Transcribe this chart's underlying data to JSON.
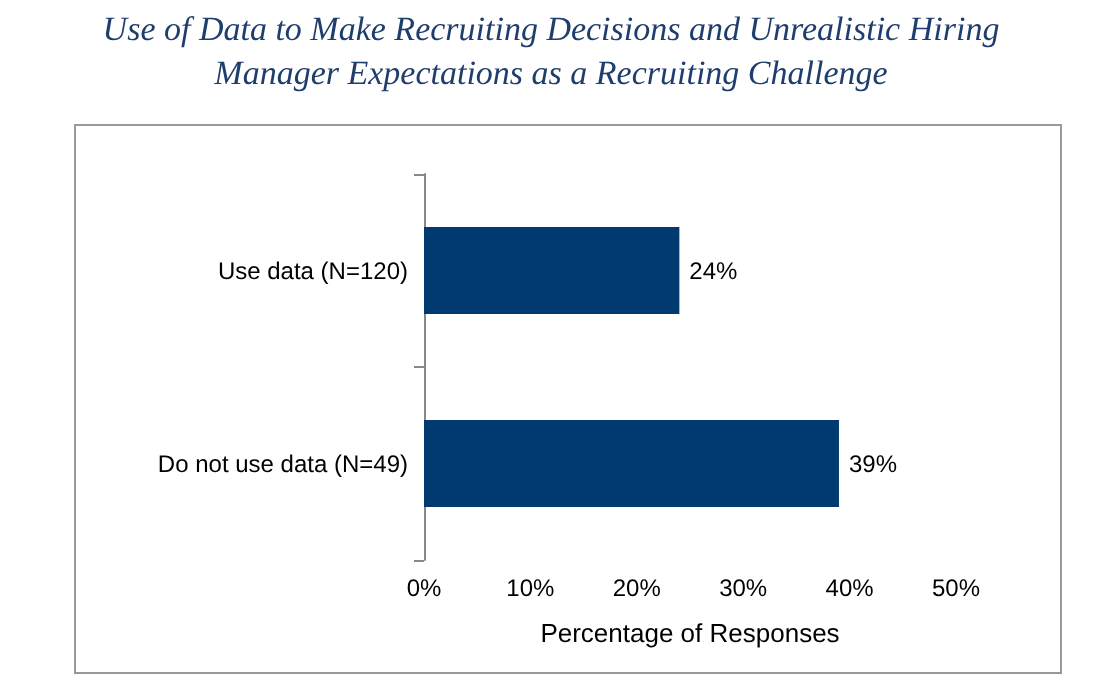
{
  "chart_data": {
    "type": "bar",
    "orientation": "horizontal",
    "title": "Use of Data to Make Recruiting Decisions and Unrealistic Hiring Manager Expectations as a Recruiting Challenge",
    "categories": [
      "Use data (N=120)",
      "Do not use data (N=49)"
    ],
    "values": [
      24,
      39
    ],
    "value_labels": [
      "24%",
      "39%"
    ],
    "color": "#003a70",
    "xlabel": "Percentage of Responses",
    "xlim": [
      0,
      50
    ],
    "xticks": [
      {
        "value": 0,
        "label": "0%"
      },
      {
        "value": 10,
        "label": "10%"
      },
      {
        "value": 20,
        "label": "20%"
      },
      {
        "value": 30,
        "label": "30%"
      },
      {
        "value": 40,
        "label": "40%"
      },
      {
        "value": 50,
        "label": "50%"
      }
    ],
    "grid": false
  }
}
